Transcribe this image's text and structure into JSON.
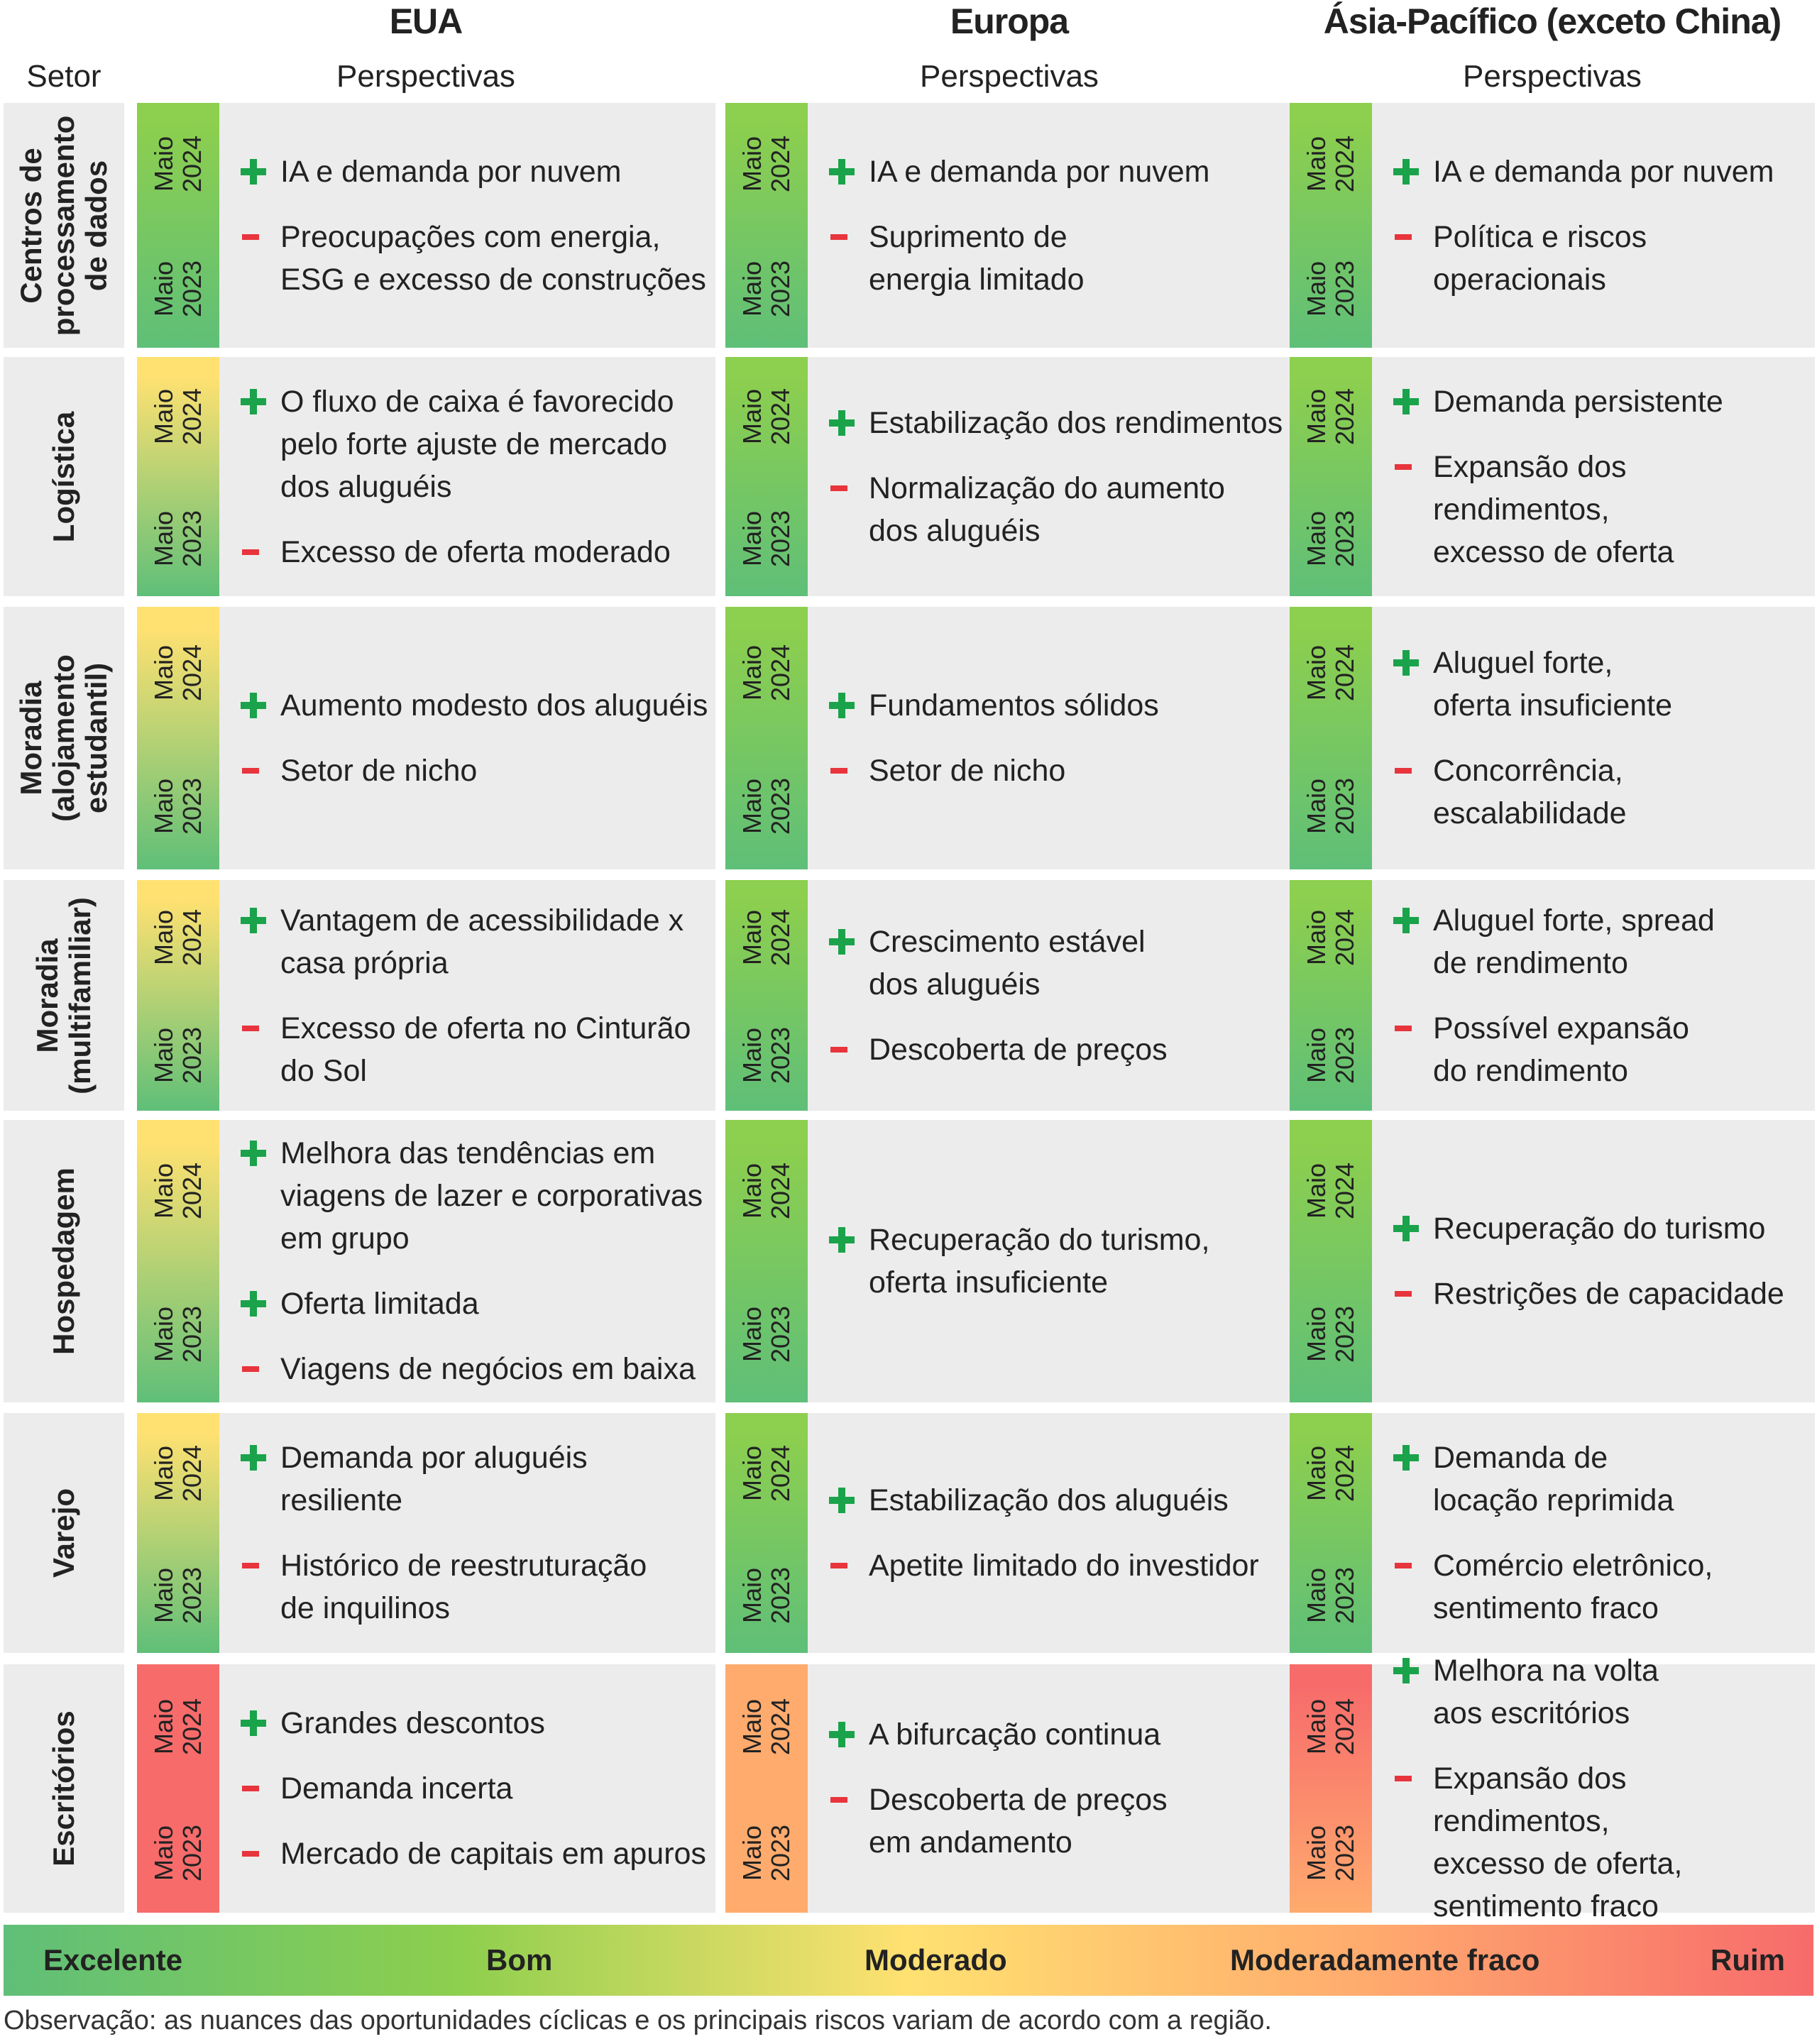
{
  "header": {
    "setor": "Setor",
    "regions": [
      "EUA",
      "Europa",
      "Ásia-Pacífico (exceto China)"
    ],
    "perspectivas": "Perspectivas"
  },
  "period_labels": {
    "top": "Maio\n2024",
    "bottom": "Maio\n2023"
  },
  "colors": {
    "excelente": "#5fbf78",
    "bom": "#8dcf4e",
    "moderado": "#ffe171",
    "moderadamente_fraco": "#ffab6e",
    "ruim": "#f76b6b",
    "plus": "#1aa34a",
    "minus": "#e8343c"
  },
  "sectors": [
    {
      "name": "Centros de\nprocessamento\nde dados",
      "cells": [
        {
          "rating_2024": "Bom",
          "rating_2023": "Excelente",
          "items": [
            {
              "sign": "+",
              "text": "IA e demanda por nuvem"
            },
            {
              "sign": "-",
              "text": "Preocupações com energia,\nESG e excesso de construções"
            }
          ]
        },
        {
          "rating_2024": "Bom",
          "rating_2023": "Excelente",
          "items": [
            {
              "sign": "+",
              "text": "IA e demanda por nuvem"
            },
            {
              "sign": "-",
              "text": "Suprimento de\nenergia limitado"
            }
          ]
        },
        {
          "rating_2024": "Bom",
          "rating_2023": "Excelente",
          "items": [
            {
              "sign": "+",
              "text": "IA e demanda por nuvem"
            },
            {
              "sign": "-",
              "text": "Política e riscos operacionais"
            }
          ]
        }
      ]
    },
    {
      "name": "Logística",
      "cells": [
        {
          "rating_2024": "Moderado",
          "rating_2023": "Excelente",
          "items": [
            {
              "sign": "+",
              "text": "O fluxo de caixa é favorecido\npelo forte ajuste de mercado\ndos aluguéis"
            },
            {
              "sign": "-",
              "text": "Excesso de oferta moderado"
            }
          ]
        },
        {
          "rating_2024": "Bom",
          "rating_2023": "Excelente",
          "items": [
            {
              "sign": "+",
              "text": "Estabilização dos rendimentos"
            },
            {
              "sign": "-",
              "text": "Normalização do aumento\ndos aluguéis"
            }
          ]
        },
        {
          "rating_2024": "Bom",
          "rating_2023": "Excelente",
          "items": [
            {
              "sign": "+",
              "text": "Demanda persistente"
            },
            {
              "sign": "-",
              "text": "Expansão dos rendimentos,\nexcesso de oferta"
            }
          ]
        }
      ]
    },
    {
      "name": "Moradia\n(alojamento\nestudantil)",
      "cells": [
        {
          "rating_2024": "Moderado",
          "rating_2023": "Excelente",
          "items": [
            {
              "sign": "+",
              "text": "Aumento modesto dos aluguéis"
            },
            {
              "sign": "-",
              "text": "Setor de nicho"
            }
          ]
        },
        {
          "rating_2024": "Bom",
          "rating_2023": "Excelente",
          "items": [
            {
              "sign": "+",
              "text": "Fundamentos sólidos"
            },
            {
              "sign": "-",
              "text": "Setor de nicho"
            }
          ]
        },
        {
          "rating_2024": "Bom",
          "rating_2023": "Excelente",
          "items": [
            {
              "sign": "+",
              "text": "Aluguel forte,\noferta insuficiente"
            },
            {
              "sign": "-",
              "text": "Concorrência, escalabilidade"
            }
          ]
        }
      ]
    },
    {
      "name": "Moradia\n(multifamiliar)",
      "cells": [
        {
          "rating_2024": "Moderado",
          "rating_2023": "Excelente",
          "items": [
            {
              "sign": "+",
              "text": "Vantagem de acessibilidade x\ncasa própria"
            },
            {
              "sign": "-",
              "text": "Excesso de oferta no Cinturão\ndo Sol"
            }
          ]
        },
        {
          "rating_2024": "Bom",
          "rating_2023": "Excelente",
          "items": [
            {
              "sign": "+",
              "text": "Crescimento estável\ndos aluguéis"
            },
            {
              "sign": "-",
              "text": "Descoberta de preços"
            }
          ]
        },
        {
          "rating_2024": "Bom",
          "rating_2023": "Excelente",
          "items": [
            {
              "sign": "+",
              "text": "Aluguel forte, spread\nde rendimento"
            },
            {
              "sign": "-",
              "text": "Possível expansão\ndo rendimento"
            }
          ]
        }
      ]
    },
    {
      "name": "Hospedagem",
      "cells": [
        {
          "rating_2024": "Moderado",
          "rating_2023": "Excelente",
          "items": [
            {
              "sign": "+",
              "text": "Melhora das tendências em\nviagens de lazer e corporativas\nem grupo"
            },
            {
              "sign": "+",
              "text": "Oferta limitada"
            },
            {
              "sign": "-",
              "text": "Viagens de negócios em baixa"
            }
          ]
        },
        {
          "rating_2024": "Bom",
          "rating_2023": "Excelente",
          "items": [
            {
              "sign": "+",
              "text": "Recuperação do turismo,\noferta insuficiente"
            }
          ]
        },
        {
          "rating_2024": "Bom",
          "rating_2023": "Excelente",
          "items": [
            {
              "sign": "+",
              "text": "Recuperação do turismo"
            },
            {
              "sign": "-",
              "text": "Restrições de capacidade"
            }
          ]
        }
      ]
    },
    {
      "name": "Varejo",
      "cells": [
        {
          "rating_2024": "Moderado",
          "rating_2023": "Excelente",
          "items": [
            {
              "sign": "+",
              "text": "Demanda por aluguéis resiliente"
            },
            {
              "sign": "-",
              "text": "Histórico de reestruturação\nde inquilinos"
            }
          ]
        },
        {
          "rating_2024": "Bom",
          "rating_2023": "Excelente",
          "items": [
            {
              "sign": "+",
              "text": "Estabilização dos aluguéis"
            },
            {
              "sign": "-",
              "text": "Apetite limitado do investidor"
            }
          ]
        },
        {
          "rating_2024": "Bom",
          "rating_2023": "Excelente",
          "items": [
            {
              "sign": "+",
              "text": "Demanda de\nlocação reprimida"
            },
            {
              "sign": "-",
              "text": "Comércio eletrônico,\nsentimento fraco"
            }
          ]
        }
      ]
    },
    {
      "name": "Escritórios",
      "cells": [
        {
          "rating_2024": "Ruim",
          "rating_2023": "Ruim",
          "items": [
            {
              "sign": "+",
              "text": "Grandes descontos"
            },
            {
              "sign": "-",
              "text": "Demanda incerta"
            },
            {
              "sign": "-",
              "text": "Mercado de capitais em apuros"
            }
          ]
        },
        {
          "rating_2024": "Moderadamente fraco",
          "rating_2023": "Moderadamente fraco",
          "items": [
            {
              "sign": "+",
              "text": "A bifurcação continua"
            },
            {
              "sign": "-",
              "text": "Descoberta de preços\nem andamento"
            }
          ]
        },
        {
          "rating_2024": "Ruim",
          "rating_2023": "Moderadamente fraco",
          "items": [
            {
              "sign": "+",
              "text": "Melhora na volta\naos escritórios"
            },
            {
              "sign": "-",
              "text": "Expansão dos rendimentos,\nexcesso de oferta,\nsentimento fraco"
            }
          ]
        }
      ]
    }
  ],
  "legend": [
    "Excelente",
    "Bom",
    "Moderado",
    "Moderadamente fraco",
    "Ruim"
  ],
  "note": "Observação: as nuances das oportunidades cíclicas e os principais riscos variam de acordo com a região."
}
